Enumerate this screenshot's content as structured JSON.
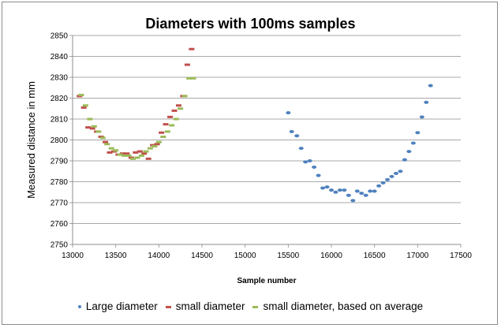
{
  "chart_data": {
    "type": "scatter",
    "title": "Diameters with 100ms samples",
    "xlabel": "Sample number",
    "ylabel": "Measured distance in mm",
    "xlim": [
      13000,
      17500
    ],
    "ylim": [
      2750,
      2850
    ],
    "xticks": [
      13000,
      13500,
      14000,
      14500,
      15000,
      15500,
      16000,
      16500,
      17000,
      17500
    ],
    "yticks": [
      2750,
      2760,
      2770,
      2780,
      2790,
      2800,
      2810,
      2820,
      2830,
      2840,
      2850
    ],
    "grid": true,
    "legend_position": "bottom",
    "series": [
      {
        "name": "Large diameter",
        "color": "#4f81bd",
        "marker": "dot",
        "points": [
          [
            15500,
            2813
          ],
          [
            15540,
            2804
          ],
          [
            15600,
            2802
          ],
          [
            15650,
            2796
          ],
          [
            15700,
            2789.5
          ],
          [
            15750,
            2790
          ],
          [
            15800,
            2787
          ],
          [
            15850,
            2783
          ],
          [
            15900,
            2777
          ],
          [
            15950,
            2777.5
          ],
          [
            16000,
            2776
          ],
          [
            16050,
            2775
          ],
          [
            16100,
            2776
          ],
          [
            16150,
            2776
          ],
          [
            16200,
            2773.5
          ],
          [
            16250,
            2771
          ],
          [
            16300,
            2775.5
          ],
          [
            16350,
            2774.5
          ],
          [
            16400,
            2773.5
          ],
          [
            16450,
            2775.5
          ],
          [
            16500,
            2775.5
          ],
          [
            16550,
            2778
          ],
          [
            16600,
            2779.5
          ],
          [
            16650,
            2781
          ],
          [
            16700,
            2782.5
          ],
          [
            16750,
            2784
          ],
          [
            16800,
            2785
          ],
          [
            16850,
            2790.5
          ],
          [
            16900,
            2794.5
          ],
          [
            16950,
            2798.5
          ],
          [
            17000,
            2803.5
          ],
          [
            17050,
            2811
          ],
          [
            17100,
            2818
          ],
          [
            17150,
            2826
          ]
        ]
      },
      {
        "name": "small diameter",
        "color": "#c0504d",
        "marker": "dash",
        "points": [
          [
            13080,
            2821
          ],
          [
            13130,
            2815.5
          ],
          [
            13180,
            2806
          ],
          [
            13230,
            2805.5
          ],
          [
            13280,
            2804
          ],
          [
            13330,
            2801.5
          ],
          [
            13380,
            2799
          ],
          [
            13430,
            2794
          ],
          [
            13480,
            2794.5
          ],
          [
            13530,
            2793
          ],
          [
            13580,
            2793.5
          ],
          [
            13630,
            2793.5
          ],
          [
            13680,
            2791.5
          ],
          [
            13730,
            2794
          ],
          [
            13780,
            2794.5
          ],
          [
            13830,
            2793.5
          ],
          [
            13880,
            2791
          ],
          [
            13930,
            2797.5
          ],
          [
            13980,
            2798
          ],
          [
            14030,
            2803.5
          ],
          [
            14080,
            2807.5
          ],
          [
            14130,
            2811
          ],
          [
            14180,
            2814
          ],
          [
            14230,
            2816.5
          ],
          [
            14280,
            2821
          ],
          [
            14330,
            2836
          ],
          [
            14380,
            2843.5
          ]
        ]
      },
      {
        "name": "small diameter, based on average",
        "color": "#9bbb59",
        "marker": "dash",
        "points": [
          [
            13100,
            2821.5
          ],
          [
            13150,
            2816.5
          ],
          [
            13200,
            2810
          ],
          [
            13250,
            2806.5
          ],
          [
            13300,
            2804
          ],
          [
            13350,
            2801
          ],
          [
            13400,
            2798
          ],
          [
            13450,
            2796
          ],
          [
            13500,
            2795
          ],
          [
            13550,
            2793
          ],
          [
            13600,
            2792.5
          ],
          [
            13650,
            2792.5
          ],
          [
            13700,
            2791
          ],
          [
            13750,
            2791.5
          ],
          [
            13800,
            2792.5
          ],
          [
            13850,
            2794.5
          ],
          [
            13900,
            2796
          ],
          [
            13950,
            2797
          ],
          [
            14000,
            2799
          ],
          [
            14050,
            2801.5
          ],
          [
            14100,
            2804
          ],
          [
            14150,
            2807
          ],
          [
            14200,
            2810
          ],
          [
            14250,
            2815
          ],
          [
            14300,
            2821
          ],
          [
            14350,
            2829.5
          ],
          [
            14400,
            2829.5
          ]
        ]
      }
    ]
  }
}
